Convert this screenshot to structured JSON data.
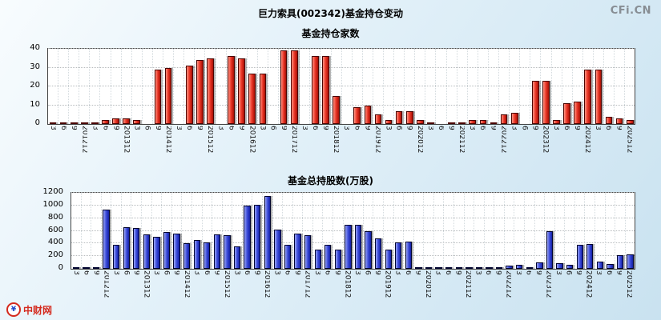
{
  "page": {
    "title": "巨力索具(002342)基金持仓变动",
    "watermark": "CFi.CN",
    "logo_symbol": "¥",
    "logo_text": "中财网"
  },
  "colors": {
    "funds_count_bar": "#ea3526",
    "shares_bar": "#3c4cdb",
    "plot_background": "#ffffff",
    "page_background": "#cfe5f2"
  },
  "chart_data": [
    {
      "type": "bar",
      "title": "基金持仓家数",
      "bar_style": "red",
      "bar_color": "#ea3526",
      "xlabel": "",
      "ylabel": "",
      "grid": true,
      "legend": "none",
      "ylim": [
        0,
        40
      ],
      "yticks": [
        0,
        10,
        20,
        30,
        40
      ],
      "categories": [
        "3",
        "6",
        "9",
        "201212",
        "3",
        "6",
        "9",
        "201312",
        "3",
        "6",
        "9",
        "201412",
        "3",
        "6",
        "9",
        "201512",
        "3",
        "6",
        "9",
        "201612",
        "3",
        "6",
        "9",
        "201712",
        "3",
        "6",
        "9",
        "201812",
        "3",
        "6",
        "9",
        "201912",
        "3",
        "6",
        "9",
        "202012",
        "3",
        "6",
        "9",
        "202112",
        "3",
        "6",
        "9",
        "202212",
        "3",
        "6",
        "9",
        "202312",
        "3",
        "6",
        "9",
        "202412",
        "3",
        "6",
        "9",
        "202512"
      ],
      "values": [
        1,
        1,
        1,
        1,
        1,
        2,
        3,
        3,
        2,
        0,
        29,
        30,
        0,
        31,
        34,
        35,
        0,
        36,
        35,
        27,
        27,
        0,
        39,
        39,
        0,
        36,
        36,
        15,
        0,
        9,
        10,
        5,
        2,
        7,
        7,
        2,
        1,
        0,
        1,
        1,
        2,
        2,
        1,
        5,
        6,
        0,
        23,
        23,
        2,
        11,
        12,
        29,
        29,
        4,
        3,
        2
      ]
    },
    {
      "type": "bar",
      "title": "基金总持股数(万股)",
      "bar_style": "blue",
      "bar_color": "#3c4cdb",
      "xlabel": "",
      "ylabel": "",
      "grid": true,
      "legend": "none",
      "ylim": [
        0,
        1200
      ],
      "yticks": [
        0,
        200,
        400,
        600,
        800,
        1000,
        1200
      ],
      "categories": [
        "3",
        "6",
        "9",
        "201212",
        "3",
        "6",
        "9",
        "201312",
        "3",
        "6",
        "9",
        "201412",
        "3",
        "6",
        "9",
        "201512",
        "3",
        "6",
        "9",
        "201612",
        "3",
        "6",
        "9",
        "201712",
        "3",
        "6",
        "9",
        "201812",
        "3",
        "6",
        "9",
        "201912",
        "3",
        "6",
        "9",
        "202012",
        "3",
        "6",
        "9",
        "202112",
        "3",
        "6",
        "9",
        "202212",
        "3",
        "6",
        "9",
        "202312",
        "3",
        "6",
        "9",
        "202412",
        "3",
        "6",
        "9",
        "202512"
      ],
      "values": [
        10,
        15,
        20,
        930,
        380,
        660,
        650,
        540,
        500,
        580,
        560,
        400,
        450,
        420,
        540,
        530,
        350,
        1000,
        1010,
        1150,
        620,
        380,
        550,
        530,
        300,
        380,
        300,
        690,
        700,
        600,
        480,
        300,
        420,
        430,
        30,
        20,
        10,
        5,
        10,
        15,
        10,
        5,
        5,
        50,
        60,
        10,
        100,
        590,
        90,
        60,
        380,
        390,
        120,
        80,
        220,
        230
      ]
    }
  ]
}
